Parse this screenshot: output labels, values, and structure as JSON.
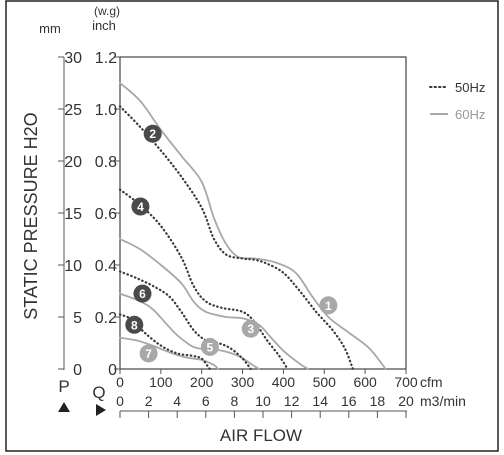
{
  "chart_data": {
    "type": "line",
    "title": "",
    "ylabel": "STATIC PRESSURE H2O",
    "xlabel": "AIR FLOW",
    "y_units": {
      "mm": "mm",
      "inch_top": "(w.g)",
      "inch_bottom": "inch"
    },
    "y_axis_letter": "P",
    "x_axis_letter": "Q",
    "y_mm_ticks": [
      "30",
      "25",
      "20",
      "15",
      "10",
      "5",
      "0"
    ],
    "y_inch_ticks": [
      "1.2",
      "1.0",
      "0.8",
      "0.6",
      "0.4",
      "0.2",
      "0"
    ],
    "x_cfm_ticks": [
      "0",
      "100",
      "200",
      "300",
      "400",
      "500",
      "600",
      "700"
    ],
    "x_cfm_unit": "cfm",
    "x_m3_ticks": [
      "0",
      "2",
      "4",
      "6",
      "8",
      "10",
      "12",
      "14",
      "16",
      "18",
      "20"
    ],
    "x_m3_unit": "m3/min",
    "x_cfm_range": [
      0,
      700
    ],
    "y_inch_range": [
      0,
      1.2
    ],
    "grid": false,
    "legend_position": "top-right",
    "legend": [
      {
        "label": "50Hz",
        "style": "dotted",
        "color": "#3a3a3a"
      },
      {
        "label": "60Hz",
        "style": "solid",
        "color": "#a8a8a8"
      }
    ],
    "series": [
      {
        "label": "1",
        "hz": "60Hz",
        "points": [
          [
            0,
            1.1
          ],
          [
            50,
            1.03
          ],
          [
            100,
            0.92
          ],
          [
            150,
            0.82
          ],
          [
            200,
            0.72
          ],
          [
            230,
            0.58
          ],
          [
            260,
            0.48
          ],
          [
            290,
            0.43
          ],
          [
            330,
            0.425
          ],
          [
            380,
            0.41
          ],
          [
            430,
            0.37
          ],
          [
            470,
            0.28
          ],
          [
            510,
            0.2
          ],
          [
            560,
            0.14
          ],
          [
            610,
            0.08
          ],
          [
            650,
            0
          ]
        ]
      },
      {
        "label": "2",
        "hz": "50Hz",
        "points": [
          [
            0,
            1.01
          ],
          [
            50,
            0.93
          ],
          [
            100,
            0.84
          ],
          [
            150,
            0.74
          ],
          [
            200,
            0.62
          ],
          [
            230,
            0.5
          ],
          [
            260,
            0.44
          ],
          [
            300,
            0.425
          ],
          [
            330,
            0.42
          ],
          [
            360,
            0.405
          ],
          [
            400,
            0.37
          ],
          [
            440,
            0.3
          ],
          [
            480,
            0.22
          ],
          [
            520,
            0.15
          ],
          [
            550,
            0.08
          ],
          [
            570,
            0
          ]
        ]
      },
      {
        "label": "3",
        "hz": "60Hz",
        "points": [
          [
            0,
            0.5
          ],
          [
            50,
            0.46
          ],
          [
            100,
            0.4
          ],
          [
            150,
            0.33
          ],
          [
            180,
            0.26
          ],
          [
            210,
            0.22
          ],
          [
            260,
            0.2
          ],
          [
            300,
            0.195
          ],
          [
            340,
            0.17
          ],
          [
            370,
            0.12
          ],
          [
            400,
            0.07
          ],
          [
            440,
            0.02
          ],
          [
            460,
            0
          ]
        ]
      },
      {
        "label": "4",
        "hz": "50Hz",
        "points": [
          [
            0,
            0.69
          ],
          [
            50,
            0.63
          ],
          [
            100,
            0.55
          ],
          [
            150,
            0.43
          ],
          [
            180,
            0.32
          ],
          [
            210,
            0.26
          ],
          [
            250,
            0.235
          ],
          [
            300,
            0.22
          ],
          [
            330,
            0.18
          ],
          [
            360,
            0.11
          ],
          [
            390,
            0.05
          ],
          [
            410,
            0
          ]
        ]
      },
      {
        "label": "5",
        "hz": "60Hz",
        "points": [
          [
            0,
            0.29
          ],
          [
            50,
            0.26
          ],
          [
            80,
            0.23
          ],
          [
            110,
            0.18
          ],
          [
            140,
            0.13
          ],
          [
            180,
            0.085
          ],
          [
            220,
            0.075
          ],
          [
            250,
            0.07
          ],
          [
            290,
            0.05
          ],
          [
            320,
            0.02
          ],
          [
            340,
            0
          ]
        ]
      },
      {
        "label": "6",
        "hz": "50Hz",
        "points": [
          [
            0,
            0.375
          ],
          [
            40,
            0.35
          ],
          [
            80,
            0.32
          ],
          [
            120,
            0.28
          ],
          [
            150,
            0.22
          ],
          [
            180,
            0.15
          ],
          [
            210,
            0.11
          ],
          [
            240,
            0.1
          ],
          [
            270,
            0.08
          ],
          [
            300,
            0.04
          ],
          [
            320,
            0
          ]
        ]
      },
      {
        "label": "7",
        "hz": "60Hz",
        "points": [
          [
            0,
            0.12
          ],
          [
            40,
            0.11
          ],
          [
            80,
            0.09
          ],
          [
            120,
            0.065
          ],
          [
            160,
            0.045
          ],
          [
            200,
            0.035
          ],
          [
            230,
            0.015
          ],
          [
            240,
            0
          ]
        ]
      },
      {
        "label": "8",
        "hz": "50Hz",
        "points": [
          [
            0,
            0.21
          ],
          [
            30,
            0.19
          ],
          [
            60,
            0.14
          ],
          [
            100,
            0.09
          ],
          [
            140,
            0.06
          ],
          [
            180,
            0.05
          ],
          [
            200,
            0.04
          ],
          [
            215,
            0.01
          ],
          [
            220,
            0
          ]
        ]
      }
    ],
    "curve_labels": [
      {
        "label": "1",
        "x": 510,
        "y": 0.245,
        "hz": "60Hz"
      },
      {
        "label": "2",
        "x": 80,
        "y": 0.905,
        "hz": "50Hz"
      },
      {
        "label": "3",
        "x": 320,
        "y": 0.155,
        "hz": "60Hz"
      },
      {
        "label": "4",
        "x": 50,
        "y": 0.625,
        "hz": "50Hz"
      },
      {
        "label": "5",
        "x": 220,
        "y": 0.085,
        "hz": "60Hz"
      },
      {
        "label": "6",
        "x": 55,
        "y": 0.29,
        "hz": "50Hz"
      },
      {
        "label": "7",
        "x": 70,
        "y": 0.06,
        "hz": "60Hz"
      },
      {
        "label": "8",
        "x": 35,
        "y": 0.17,
        "hz": "50Hz"
      }
    ],
    "colors": {
      "hz50": "#3a3a3a",
      "hz60": "#a8a8a8",
      "badge50": "#4a4a4a",
      "badge60": "#a8a8a8"
    }
  }
}
